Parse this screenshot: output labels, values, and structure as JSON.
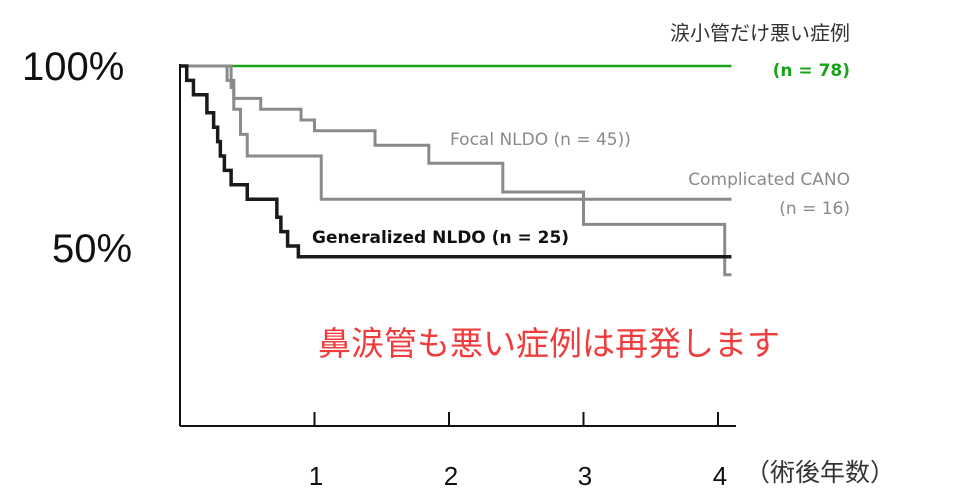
{
  "chart_data": {
    "type": "line",
    "step": true,
    "x_unit_label": "（術後年数）",
    "x_ticks": [
      1,
      2,
      3,
      4
    ],
    "y_ticks": [
      "100%",
      "50%"
    ],
    "y_tick_values": [
      100,
      50
    ],
    "xlim": [
      0,
      4.1
    ],
    "ylim": [
      0,
      100
    ],
    "grid": false,
    "annotation": "鼻涙管も悪い症例は再発します",
    "annotation_color": "#f03c3c",
    "series": [
      {
        "label_line1": "涙小管だけ悪い症例",
        "label_line2": "(n = 78)",
        "color": "#1aa31a",
        "label_color": "#333333",
        "label2_color": "#1aa31a",
        "points": [
          [
            0,
            100
          ],
          [
            4.1,
            100
          ]
        ]
      },
      {
        "label_line1": "Focal NLDO (n = 45))",
        "color": "#8a8a8a",
        "label_color": "#8a8a8a",
        "points": [
          [
            0,
            100
          ],
          [
            0.35,
            100
          ],
          [
            0.35,
            96
          ],
          [
            0.4,
            96
          ],
          [
            0.4,
            91
          ],
          [
            0.6,
            91
          ],
          [
            0.6,
            88
          ],
          [
            0.9,
            88
          ],
          [
            0.9,
            85
          ],
          [
            1.0,
            85
          ],
          [
            1.0,
            82
          ],
          [
            1.45,
            82
          ],
          [
            1.45,
            78
          ],
          [
            1.85,
            78
          ],
          [
            1.85,
            73
          ],
          [
            2.4,
            73
          ],
          [
            2.4,
            65
          ],
          [
            3.0,
            65
          ],
          [
            3.0,
            56
          ],
          [
            4.05,
            56
          ],
          [
            4.05,
            42
          ],
          [
            4.1,
            42
          ]
        ]
      },
      {
        "label_line1": "Complicated CANO",
        "label_line2": "(n = 16)",
        "color": "#8a8a8a",
        "label_color": "#8a8a8a",
        "points": [
          [
            0,
            100
          ],
          [
            0.38,
            100
          ],
          [
            0.38,
            94
          ],
          [
            0.4,
            94
          ],
          [
            0.4,
            88
          ],
          [
            0.45,
            88
          ],
          [
            0.45,
            81
          ],
          [
            0.5,
            81
          ],
          [
            0.5,
            75
          ],
          [
            1.05,
            75
          ],
          [
            1.05,
            63
          ],
          [
            4.1,
            63
          ]
        ]
      },
      {
        "label_line1": "Generalized NLDO (n = 25)",
        "color": "#1a1a1a",
        "label_color": "#111111",
        "points": [
          [
            0,
            100
          ],
          [
            0.05,
            100
          ],
          [
            0.05,
            96
          ],
          [
            0.1,
            96
          ],
          [
            0.1,
            92
          ],
          [
            0.2,
            92
          ],
          [
            0.2,
            87
          ],
          [
            0.25,
            87
          ],
          [
            0.25,
            83
          ],
          [
            0.28,
            83
          ],
          [
            0.28,
            79
          ],
          [
            0.3,
            79
          ],
          [
            0.3,
            75
          ],
          [
            0.33,
            75
          ],
          [
            0.33,
            71
          ],
          [
            0.38,
            71
          ],
          [
            0.38,
            67
          ],
          [
            0.5,
            67
          ],
          [
            0.5,
            63
          ],
          [
            0.72,
            63
          ],
          [
            0.72,
            58
          ],
          [
            0.75,
            58
          ],
          [
            0.75,
            54
          ],
          [
            0.8,
            54
          ],
          [
            0.8,
            50
          ],
          [
            0.88,
            50
          ],
          [
            0.88,
            47
          ],
          [
            4.1,
            47
          ]
        ]
      }
    ]
  }
}
